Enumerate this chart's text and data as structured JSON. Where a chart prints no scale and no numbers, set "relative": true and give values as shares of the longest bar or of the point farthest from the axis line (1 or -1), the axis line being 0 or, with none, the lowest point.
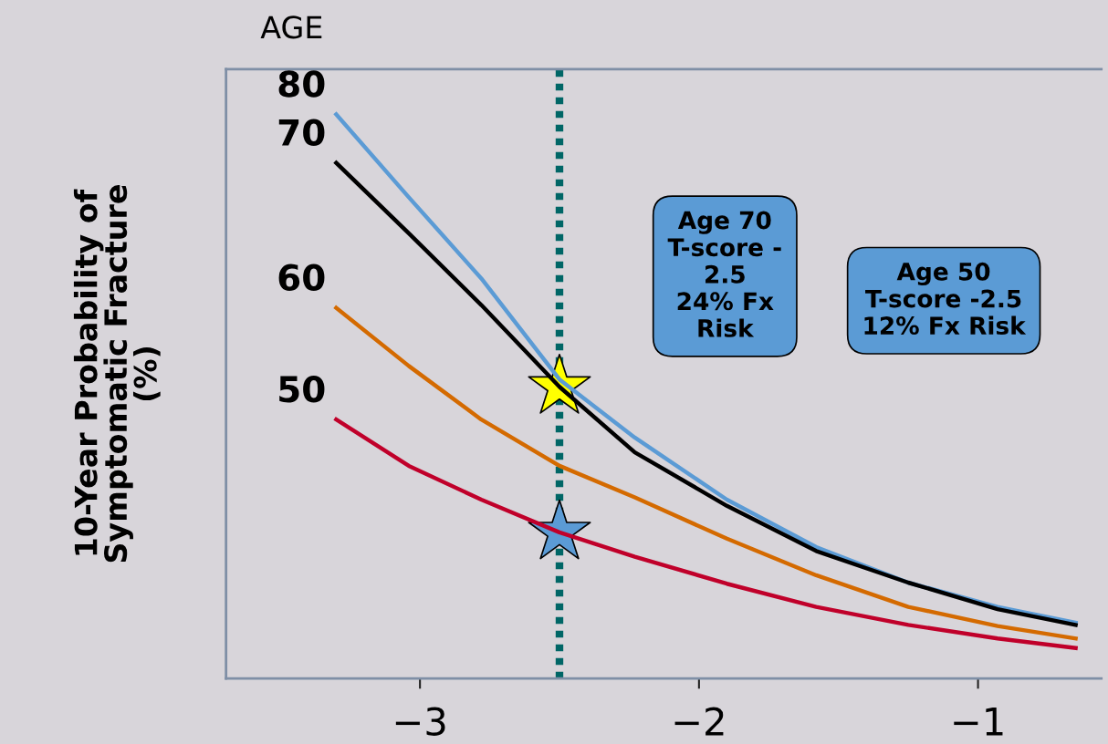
{
  "chart_data": {
    "type": "line",
    "relative": true,
    "legend_title": "AGE",
    "ylabel": "10-Year Probability of\nSymptomatic Fracture\n(%)",
    "series": [
      {
        "name": "80",
        "color": "#5b9bd5",
        "x": [
          -3.3,
          -3.04,
          -2.78,
          -2.5,
          -2.23,
          -1.9,
          -1.58,
          -1.25,
          -0.93,
          -0.65
        ],
        "values": [
          1,
          0.853,
          0.709,
          0.53,
          0.427,
          0.317,
          0.233,
          0.17,
          0.127,
          0.099
        ]
      },
      {
        "name": "70",
        "color": "#000000",
        "x": [
          -3.3,
          -3.04,
          -2.78,
          -2.5,
          -2.23,
          -1.9,
          -1.58,
          -1.25,
          -0.93,
          -0.65
        ],
        "values": [
          0.914,
          0.789,
          0.662,
          0.517,
          0.401,
          0.306,
          0.226,
          0.17,
          0.123,
          0.095
        ]
      },
      {
        "name": "60",
        "color": "#d46a00",
        "x": [
          -3.3,
          -3.04,
          -2.78,
          -2.5,
          -2.23,
          -1.9,
          -1.58,
          -1.25,
          -0.93,
          -0.65
        ],
        "values": [
          0.657,
          0.554,
          0.459,
          0.377,
          0.321,
          0.248,
          0.183,
          0.127,
          0.093,
          0.071
        ]
      },
      {
        "name": "50",
        "color": "#c0002a",
        "x": [
          -3.3,
          -3.04,
          -2.78,
          -2.5,
          -2.23,
          -1.9,
          -1.58,
          -1.25,
          -0.93,
          -0.65
        ],
        "values": [
          0.459,
          0.377,
          0.317,
          0.259,
          0.216,
          0.168,
          0.127,
          0.095,
          0.071,
          0.054
        ]
      },
      {
        "type": "scatter",
        "marker": "star",
        "color": "#ffff00",
        "x": [
          -2.5
        ],
        "values": [
          0.517
        ]
      },
      {
        "type": "scatter",
        "marker": "star",
        "color": "#5b9bd5",
        "x": [
          -2.5
        ],
        "values": [
          0.259
        ]
      }
    ],
    "ref_lines": [
      {
        "axis": "x",
        "value": -2.5,
        "color": "#006666",
        "line_style": "dotted"
      }
    ],
    "annotations": [
      "Age 70\nT-score -\n2.5\n24% Fx\nRisk",
      "Age 50\nT-score -2.5\n12% Fx Risk"
    ],
    "xlim": [
      -3.695,
      -0.558
    ],
    "xticks": [
      -3,
      -2,
      -1
    ],
    "marker": "none",
    "line_style": "solid"
  }
}
